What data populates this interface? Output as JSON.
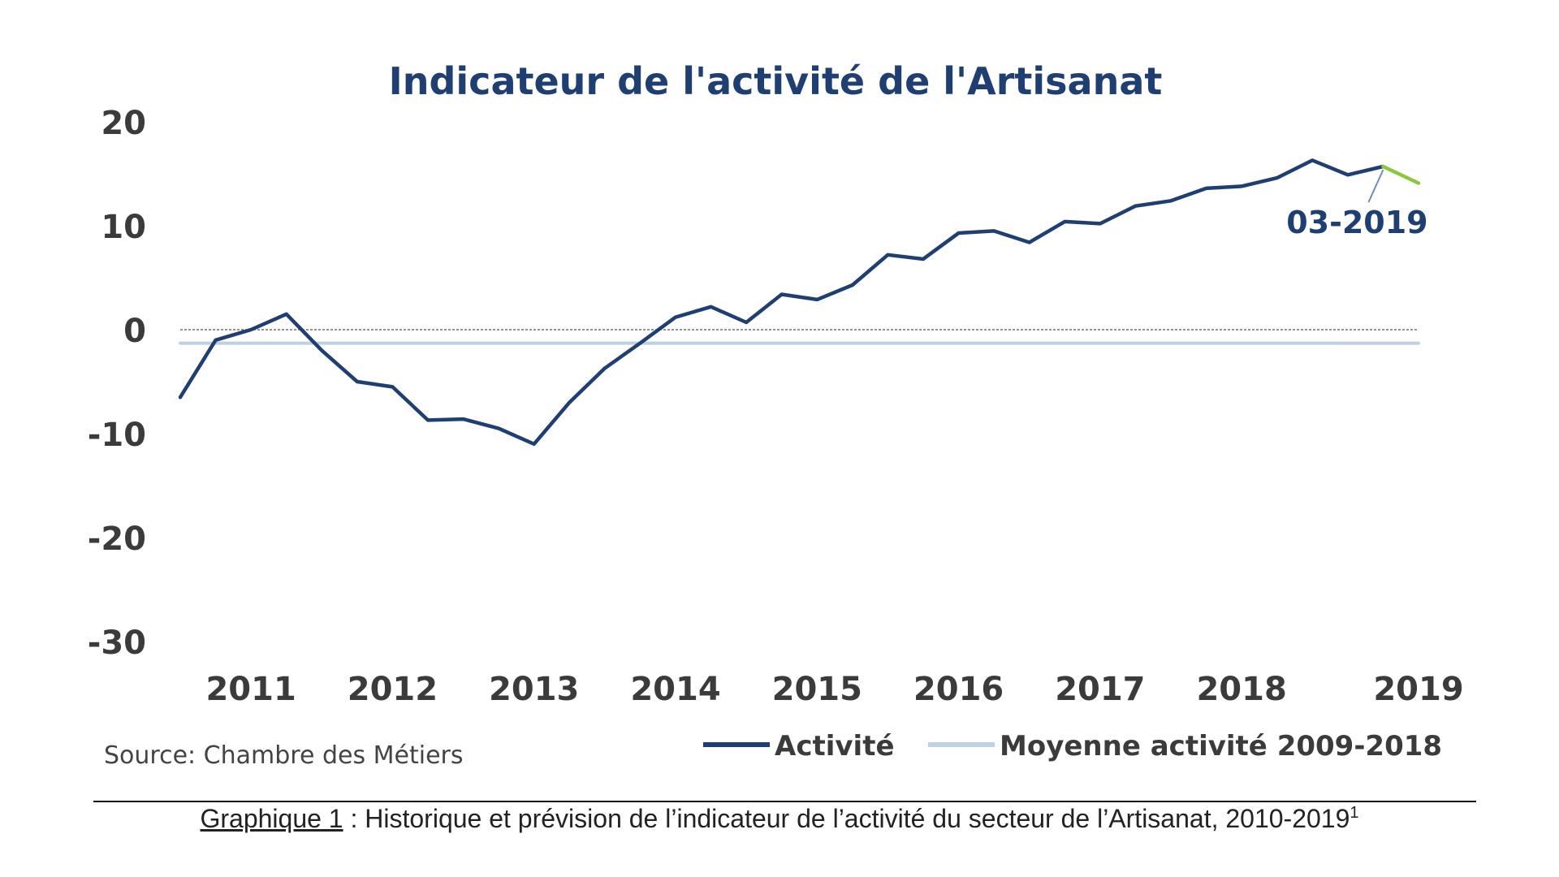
{
  "chart_data": {
    "type": "line",
    "title": "Indicateur de l'activité de l'Artisanat",
    "ylim": [
      -30,
      20
    ],
    "yticks": [
      20,
      10,
      0,
      -10,
      -20,
      -30
    ],
    "x_domain": [
      2010.5,
      2019.25
    ],
    "xticks": [
      {
        "label": "2011",
        "year": 2011.0
      },
      {
        "label": "2012",
        "year": 2012.0
      },
      {
        "label": "2013",
        "year": 2013.0
      },
      {
        "label": "2014",
        "year": 2014.0
      },
      {
        "label": "2015",
        "year": 2015.0
      },
      {
        "label": "2016",
        "year": 2016.0
      },
      {
        "label": "2017",
        "year": 2017.0
      },
      {
        "label": "2018",
        "year": 2018.0
      },
      {
        "label": "2019",
        "year": 2019.25
      }
    ],
    "series": [
      {
        "name": "Activité",
        "color": "#1f3f73",
        "x": [
          2010.5,
          2010.75,
          2011.0,
          2011.25,
          2011.5,
          2011.75,
          2012.0,
          2012.25,
          2012.5,
          2012.75,
          2013.0,
          2013.25,
          2013.5,
          2013.75,
          2014.0,
          2014.25,
          2014.5,
          2014.75,
          2015.0,
          2015.25,
          2015.5,
          2015.75,
          2016.0,
          2016.25,
          2016.5,
          2016.75,
          2017.0,
          2017.25,
          2017.5,
          2017.75,
          2018.0,
          2018.25,
          2018.5,
          2018.75,
          2019.0
        ],
        "values": [
          -6.5,
          -1.0,
          0.0,
          1.5,
          -2.0,
          -5.0,
          -5.5,
          -8.7,
          -8.6,
          -9.5,
          -11.0,
          -7.0,
          -3.7,
          -1.3,
          1.2,
          2.2,
          0.7,
          3.4,
          2.9,
          4.3,
          7.2,
          6.8,
          9.3,
          9.5,
          8.4,
          10.4,
          10.2,
          11.9,
          12.4,
          13.6,
          13.8,
          14.6,
          16.3,
          14.9,
          15.7
        ]
      },
      {
        "name": "Prévision",
        "color": "#8cc63f",
        "x": [
          2019.0,
          2019.25
        ],
        "values": [
          15.7,
          14.1
        ]
      },
      {
        "name": "Moyenne activité 2009-2018",
        "color": "#bdd0e4",
        "x": [
          2010.5,
          2019.25
        ],
        "values": [
          -1.3,
          -1.3
        ]
      }
    ],
    "legend": [
      {
        "label": "Activité",
        "color": "#1f3f73"
      },
      {
        "label": "Moyenne activité 2009-2018",
        "color": "#bdd0e4"
      }
    ],
    "annotation": {
      "text": "03-2019",
      "x": 2019.0,
      "value": 15.7
    },
    "source": "Source: Chambre des Métiers"
  },
  "caption": {
    "label": "Graphique 1",
    "text": " : Historique et prévision de l’indicateur de l’activité du secteur de l’Artisanat, 2010-2019",
    "footnote": "1"
  }
}
